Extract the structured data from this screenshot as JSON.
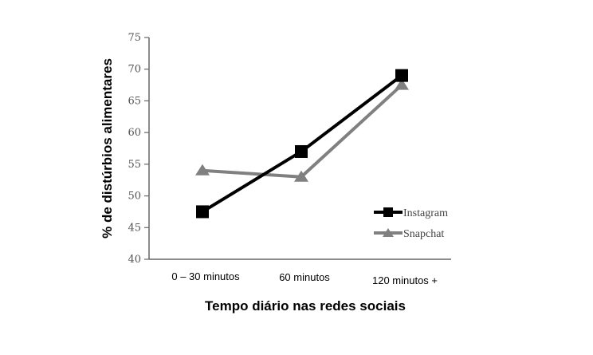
{
  "chart_data": {
    "type": "line",
    "categories": [
      "0 – 30 minutos",
      "60 minutos",
      "120 minutos +"
    ],
    "series": [
      {
        "name": "Instagram",
        "values": [
          47.5,
          57,
          69
        ],
        "color": "#000000",
        "marker": "square"
      },
      {
        "name": "Snapchat",
        "values": [
          54,
          53,
          67.5
        ],
        "color": "#808080",
        "marker": "triangle"
      }
    ],
    "yticks": [
      40,
      45,
      50,
      55,
      60,
      65,
      70,
      75
    ],
    "ylim": [
      40,
      75
    ],
    "xlabel": "Tempo diário nas redes sociais",
    "ylabel": "% de distúrbios alimentares",
    "grid": false,
    "legend_position": "bottom-right"
  }
}
